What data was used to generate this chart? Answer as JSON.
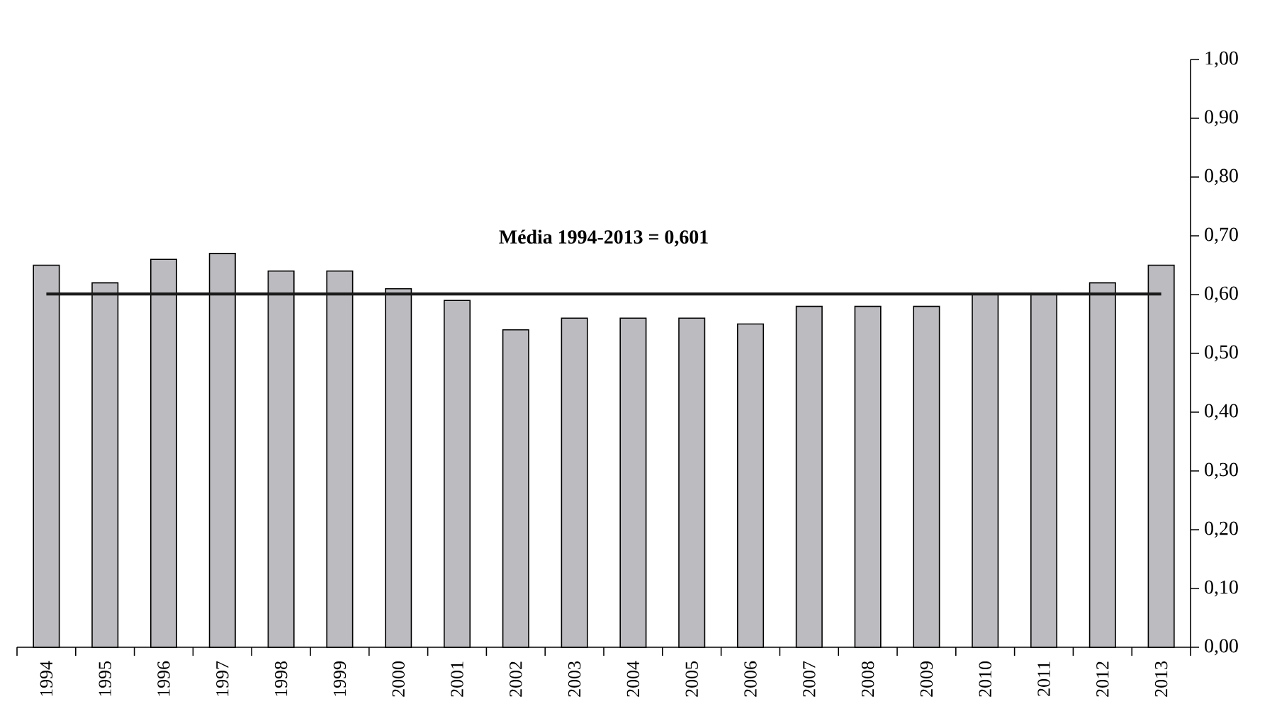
{
  "chart_data": {
    "type": "bar",
    "categories": [
      "1994",
      "1995",
      "1996",
      "1997",
      "1998",
      "1999",
      "2000",
      "2001",
      "2002",
      "2003",
      "2004",
      "2005",
      "2006",
      "2007",
      "2008",
      "2009",
      "2010",
      "2011",
      "2012",
      "2013"
    ],
    "values": [
      0.65,
      0.62,
      0.66,
      0.67,
      0.64,
      0.64,
      0.61,
      0.59,
      0.54,
      0.56,
      0.56,
      0.56,
      0.55,
      0.58,
      0.58,
      0.58,
      0.6,
      0.6,
      0.62,
      0.65
    ],
    "color": "#bcbcc0",
    "ylim": [
      0,
      1
    ],
    "yticks": [
      {
        "value": 0,
        "label": "0,00"
      },
      {
        "value": 0.1,
        "label": "0,10"
      },
      {
        "value": 0.2,
        "label": "0,20"
      },
      {
        "value": 0.3,
        "label": "0,30"
      },
      {
        "value": 0.4,
        "label": "0,40"
      },
      {
        "value": 0.5,
        "label": "0,50"
      },
      {
        "value": 0.6,
        "label": "0,60"
      },
      {
        "value": 0.7,
        "label": "0,70"
      },
      {
        "value": 0.8,
        "label": "0,80"
      },
      {
        "value": 0.9,
        "label": "0,90"
      },
      {
        "value": 1,
        "label": "1,00"
      }
    ],
    "ref_lines": [
      {
        "axis": "y",
        "value": 0.601,
        "label": "Média 1994-2013 = 0,601",
        "color": "#1a1a1a"
      }
    ]
  }
}
